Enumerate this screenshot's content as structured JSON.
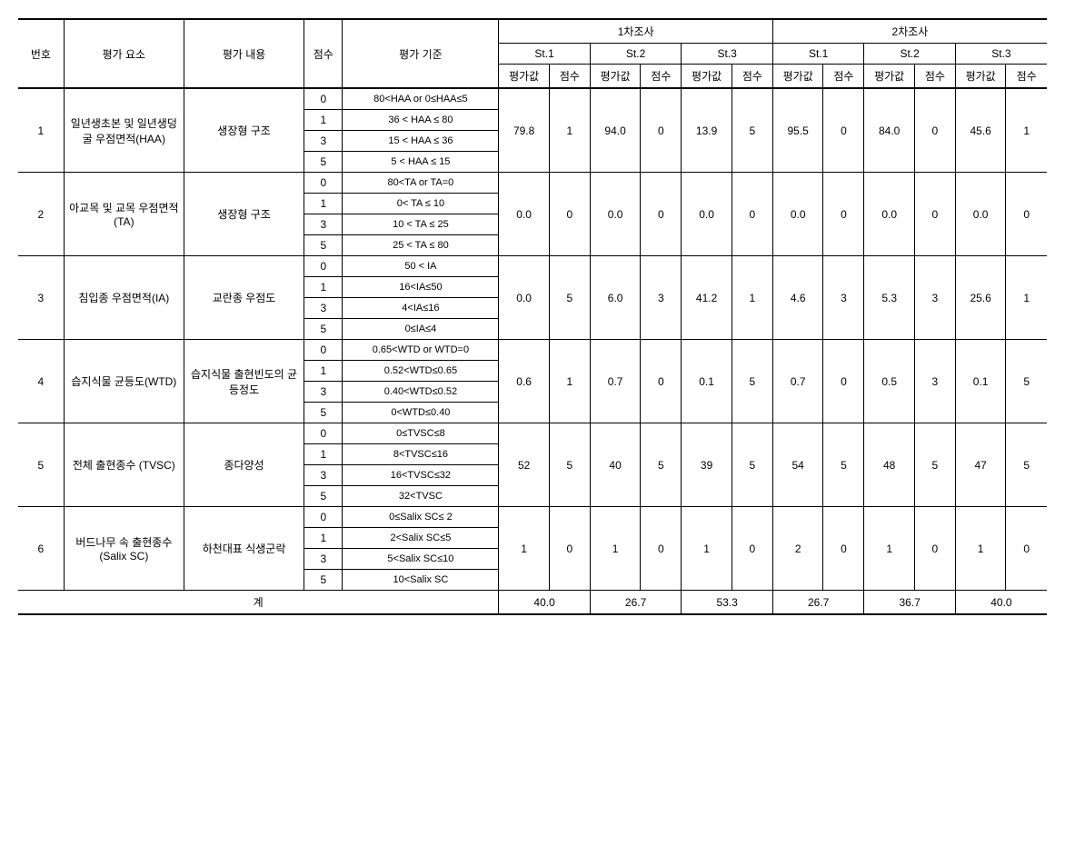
{
  "header": {
    "num": "번호",
    "element": "평가\n요소",
    "content": "평가\n내용",
    "score": "점수",
    "criteria": "평가\n기준",
    "survey1": "1차조사",
    "survey2": "2차조사",
    "st1": "St.1",
    "st2": "St.2",
    "st3": "St.3",
    "val": "평가값",
    "sc": "점수"
  },
  "score_levels": [
    "0",
    "1",
    "3",
    "5"
  ],
  "rows": [
    {
      "num": "1",
      "element": "일년생초본 및 일년생덩굴 우점면적(HAA)",
      "content": "생장형 구조",
      "criteria": [
        "80<HAA or 0≤HAA≤5",
        "36 < HAA ≤ 80",
        "15 < HAA ≤ 36",
        "5 < HAA ≤ 15"
      ],
      "s1": {
        "st1": {
          "v": "79.8",
          "s": "1"
        },
        "st2": {
          "v": "94.0",
          "s": "0"
        },
        "st3": {
          "v": "13.9",
          "s": "5"
        }
      },
      "s2": {
        "st1": {
          "v": "95.5",
          "s": "0"
        },
        "st2": {
          "v": "84.0",
          "s": "0"
        },
        "st3": {
          "v": "45.6",
          "s": "1"
        }
      }
    },
    {
      "num": "2",
      "element": "아교목 및 교목 우점면적(TA)",
      "content": "생장형 구조",
      "criteria": [
        "80<TA or TA=0",
        "0< TA ≤ 10",
        "10 < TA ≤ 25",
        "25 < TA ≤ 80"
      ],
      "s1": {
        "st1": {
          "v": "0.0",
          "s": "0"
        },
        "st2": {
          "v": "0.0",
          "s": "0"
        },
        "st3": {
          "v": "0.0",
          "s": "0"
        }
      },
      "s2": {
        "st1": {
          "v": "0.0",
          "s": "0"
        },
        "st2": {
          "v": "0.0",
          "s": "0"
        },
        "st3": {
          "v": "0.0",
          "s": "0"
        }
      }
    },
    {
      "num": "3",
      "element": "침입종 우점면적(IA)",
      "content": "교란종 우점도",
      "criteria": [
        "50 < IA",
        "16<IA≤50",
        "4<IA≤16",
        "0≤IA≤4"
      ],
      "s1": {
        "st1": {
          "v": "0.0",
          "s": "5"
        },
        "st2": {
          "v": "6.0",
          "s": "3"
        },
        "st3": {
          "v": "41.2",
          "s": "1"
        }
      },
      "s2": {
        "st1": {
          "v": "4.6",
          "s": "3"
        },
        "st2": {
          "v": "5.3",
          "s": "3"
        },
        "st3": {
          "v": "25.6",
          "s": "1"
        }
      }
    },
    {
      "num": "4",
      "element": "습지식물 균등도(WTD)",
      "content": "습지식물 출현빈도의 균등정도",
      "criteria": [
        "0.65<WTD or WTD=0",
        "0.52<WTD≤0.65",
        "0.40<WTD≤0.52",
        "0<WTD≤0.40"
      ],
      "s1": {
        "st1": {
          "v": "0.6",
          "s": "1"
        },
        "st2": {
          "v": "0.7",
          "s": "0"
        },
        "st3": {
          "v": "0.1",
          "s": "5"
        }
      },
      "s2": {
        "st1": {
          "v": "0.7",
          "s": "0"
        },
        "st2": {
          "v": "0.5",
          "s": "3"
        },
        "st3": {
          "v": "0.1",
          "s": "5"
        }
      }
    },
    {
      "num": "5",
      "element": "전체 출현종수 (TVSC)",
      "content": "종다양성",
      "criteria": [
        "0≤TVSC≤8",
        "8<TVSC≤16",
        "16<TVSC≤32",
        "32<TVSC"
      ],
      "s1": {
        "st1": {
          "v": "52",
          "s": "5"
        },
        "st2": {
          "v": "40",
          "s": "5"
        },
        "st3": {
          "v": "39",
          "s": "5"
        }
      },
      "s2": {
        "st1": {
          "v": "54",
          "s": "5"
        },
        "st2": {
          "v": "48",
          "s": "5"
        },
        "st3": {
          "v": "47",
          "s": "5"
        }
      }
    },
    {
      "num": "6",
      "element": "버드나무 속 출현종수 (Salix SC)",
      "content": "하천대표 식생군락",
      "criteria": [
        "0≤Salix SC≤ 2",
        "2<Salix SC≤5",
        "5<Salix SC≤10",
        "10<Salix SC"
      ],
      "s1": {
        "st1": {
          "v": "1",
          "s": "0"
        },
        "st2": {
          "v": "1",
          "s": "0"
        },
        "st3": {
          "v": "1",
          "s": "0"
        }
      },
      "s2": {
        "st1": {
          "v": "2",
          "s": "0"
        },
        "st2": {
          "v": "1",
          "s": "0"
        },
        "st3": {
          "v": "1",
          "s": "0"
        }
      }
    }
  ],
  "total": {
    "label": "계",
    "s1": {
      "st1": "40.0",
      "st2": "26.7",
      "st3": "53.3"
    },
    "s2": {
      "st1": "26.7",
      "st2": "36.7",
      "st3": "40.0"
    }
  }
}
